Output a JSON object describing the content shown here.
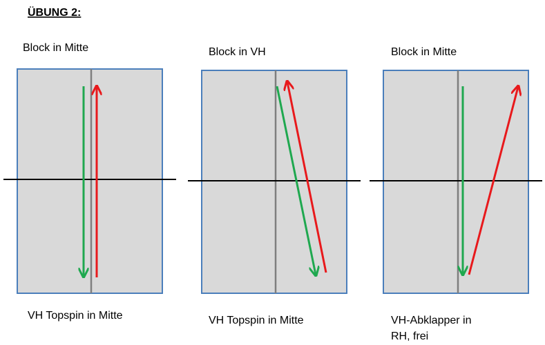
{
  "title": "ÜBUNG 2:",
  "panels": [
    {
      "top_label": "Block in Mitte",
      "bottom_label": [
        "VH Topspin in Mitte"
      ]
    },
    {
      "top_label": "Block in VH",
      "bottom_label": [
        "VH Topspin in Mitte"
      ]
    },
    {
      "top_label": "Block in Mitte",
      "bottom_label": [
        "VH-Abklapper in",
        "RH, frei"
      ]
    }
  ]
}
